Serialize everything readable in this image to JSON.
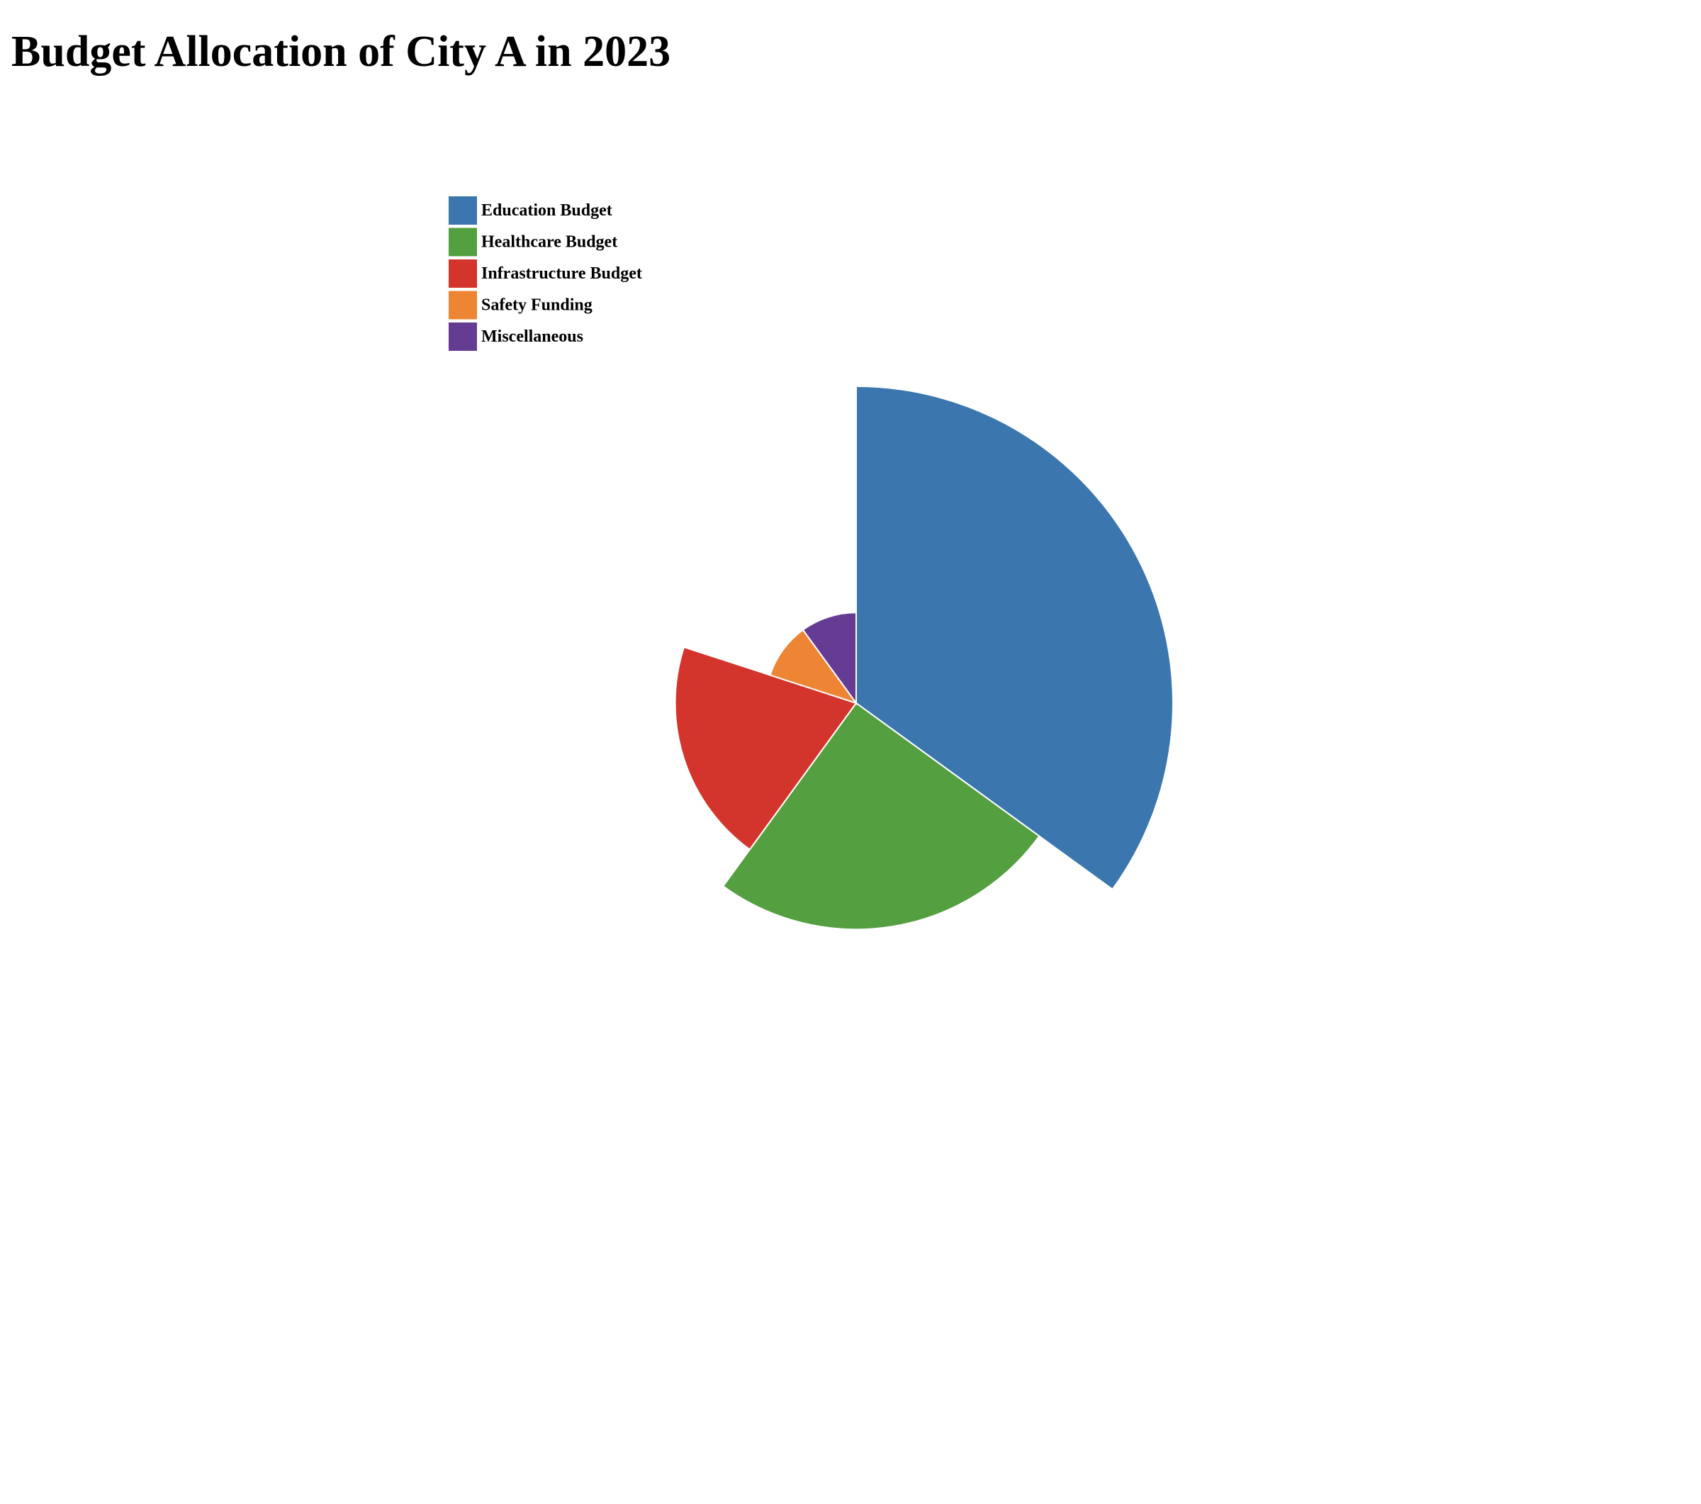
{
  "chart_data": {
    "type": "pie",
    "variant": "rose",
    "title": "Budget Allocation of City A in 2023",
    "categories": [
      "Education Budget",
      "Healthcare Budget",
      "Infrastructure Budget",
      "Safety Funding",
      "Miscellaneous"
    ],
    "values": [
      35,
      25,
      20,
      10,
      10
    ],
    "colors": [
      "#3b76ae",
      "#549f3f",
      "#d3352c",
      "#ee8535",
      "#653c93"
    ],
    "legend_position": "top-left"
  }
}
